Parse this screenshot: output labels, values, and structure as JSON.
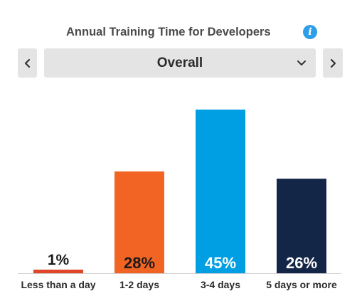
{
  "header": {
    "title": "Annual Training Time for Developers",
    "info_icon": "info-icon"
  },
  "selector": {
    "value": "Overall",
    "prev_icon": "chevron-left-icon",
    "next_icon": "chevron-right-icon",
    "dropdown_icon": "chevron-down-icon"
  },
  "chart_data": {
    "type": "bar",
    "title": "Annual Training Time for Developers",
    "categories": [
      "Less than a day",
      "1-2 days",
      "3-4 days",
      "5 days or more"
    ],
    "values": [
      1,
      28,
      45,
      26
    ],
    "labels": [
      "1%",
      "28%",
      "45%",
      "26%"
    ],
    "unit": "%",
    "colors": [
      "#e0472a",
      "#f26424",
      "#009fe3",
      "#142647"
    ],
    "label_colors": [
      "#1a1a1a",
      "#1a1a1a",
      "#ffffff",
      "#ffffff"
    ],
    "ylim": [
      0,
      45
    ],
    "grid": false,
    "legend": "none"
  }
}
